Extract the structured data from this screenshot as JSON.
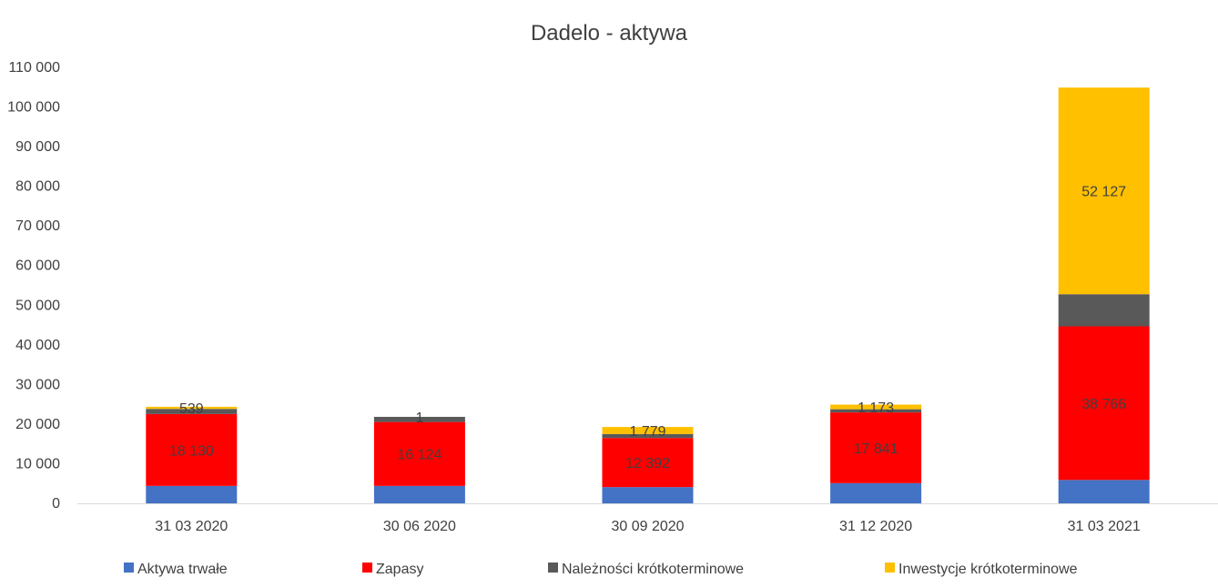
{
  "chart_data": {
    "type": "bar",
    "stacked": true,
    "title": "Dadelo - aktywa",
    "xlabel": "",
    "ylabel": "",
    "ylim": [
      0,
      110000
    ],
    "yticks": [
      0,
      10000,
      20000,
      30000,
      40000,
      50000,
      60000,
      70000,
      80000,
      90000,
      100000,
      110000
    ],
    "ytick_labels": [
      "0",
      "10 000",
      "20 000",
      "30 000",
      "40 000",
      "50 000",
      "60 000",
      "70 000",
      "80 000",
      "90 000",
      "100 000",
      "110 000"
    ],
    "categories": [
      "31 03 2020",
      "30 06 2020",
      "30 09 2020",
      "31 12 2020",
      "31 03 2021"
    ],
    "grid": false,
    "legend_position": "bottom",
    "series": [
      {
        "name": "Aktywa trwałe",
        "color": "#4472C4",
        "values": [
          4400,
          4400,
          4100,
          5100,
          5900
        ],
        "labels": [
          "",
          "",
          "",
          "",
          ""
        ]
      },
      {
        "name": "Zapasy",
        "color": "#FF0000",
        "values": [
          18130,
          16124,
          12392,
          17841,
          38766
        ],
        "labels": [
          "18 130",
          "16 124",
          "12 392",
          "17 841",
          "38 766"
        ]
      },
      {
        "name": "Należności krótkoterminowe",
        "color": "#595959",
        "values": [
          1300,
          1300,
          1000,
          800,
          8100
        ],
        "labels": [
          "",
          "",
          "",
          "",
          ""
        ]
      },
      {
        "name": "Inwestycje krótkoterminowe",
        "color": "#FFC000",
        "values": [
          539,
          1,
          1779,
          1173,
          52127
        ],
        "labels": [
          "539",
          "1",
          "1 779",
          "1 173",
          "52 127"
        ]
      }
    ]
  }
}
